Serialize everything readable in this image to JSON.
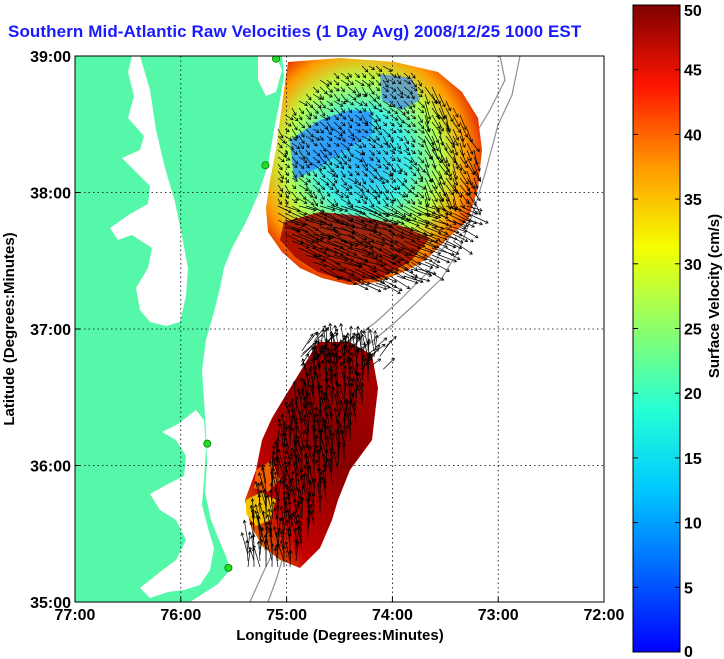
{
  "title": "Southern Mid-Atlantic Raw Velocities (1 Day Avg) 2008/12/25 1000 EST",
  "axes": {
    "xlabel": "Longitude (Degrees:Minutes)",
    "ylabel": "Latitude (Degrees:Minutes)",
    "x_ticks": [
      {
        "value": -77,
        "label": "77:00"
      },
      {
        "value": -76,
        "label": "76:00"
      },
      {
        "value": -75,
        "label": "75:00"
      },
      {
        "value": -74,
        "label": "74:00"
      },
      {
        "value": -73,
        "label": "73:00"
      },
      {
        "value": -72,
        "label": "72:00"
      }
    ],
    "y_ticks": [
      {
        "value": 35,
        "label": "35:00"
      },
      {
        "value": 36,
        "label": "36:00"
      },
      {
        "value": 37,
        "label": "37:00"
      },
      {
        "value": 38,
        "label": "38:00"
      },
      {
        "value": 39,
        "label": "39:00"
      }
    ],
    "xlim": [
      -77,
      -72
    ],
    "ylim": [
      35,
      39
    ],
    "grid": "dotted"
  },
  "colorbar": {
    "label": "Surface Velocity (cm/s)",
    "min": 0,
    "max": 50,
    "colormap": "jet",
    "ticks": [
      {
        "value": 0,
        "label": "0"
      },
      {
        "value": 5,
        "label": "5"
      },
      {
        "value": 10,
        "label": "10"
      },
      {
        "value": 15,
        "label": "15"
      },
      {
        "value": 20,
        "label": "20"
      },
      {
        "value": 25,
        "label": "25"
      },
      {
        "value": 30,
        "label": "30"
      },
      {
        "value": 35,
        "label": "35"
      },
      {
        "value": 40,
        "label": "40"
      },
      {
        "value": 45,
        "label": "45"
      },
      {
        "value": 50,
        "label": "50"
      }
    ]
  },
  "colors": {
    "land": "#55f7a9",
    "water": "#ffffff",
    "grid": "#000000",
    "bathymetry": "#909090",
    "vectors": "#000000",
    "station": "#22dd22",
    "title": "#1a1aff"
  },
  "stations": [
    {
      "lon": -75.1,
      "lat": 38.98
    },
    {
      "lon": -75.2,
      "lat": 38.2
    },
    {
      "lon": -75.75,
      "lat": 36.16
    },
    {
      "lon": -75.55,
      "lat": 35.25
    }
  ]
}
